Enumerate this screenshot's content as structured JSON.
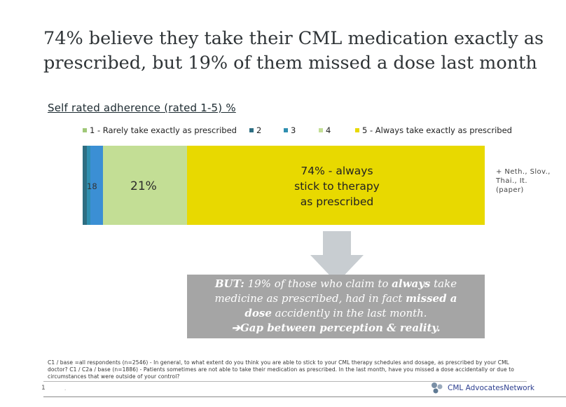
{
  "title": "74% believe they take their CML medication exactly as prescribed, but 19% of them missed a dose last month",
  "chart_data": {
    "type": "bar",
    "orientation": "horizontal-stacked-100",
    "title": "Self rated adherence (rated 1-5) %",
    "series": [
      {
        "name": "1 - Rarely take exactly as prescribed",
        "value": 1,
        "color": "#2e6e82"
      },
      {
        "name": "2",
        "value": 1,
        "color": "#2f8fb0"
      },
      {
        "name": "3",
        "value": 3,
        "color": "#3b8fd4"
      },
      {
        "name": "4",
        "value": 21,
        "color": "#c3de95"
      },
      {
        "name": "5 - Always take  exactly as prescribed",
        "value": 74,
        "color": "#e8d900"
      }
    ],
    "data_labels": {
      "left_stub": "18",
      "four": "21%"
    },
    "big_label_lines": [
      "74% - always",
      "stick to therapy",
      "as prescribed"
    ]
  },
  "side_note_lines": [
    "+ Neth., Slov.,",
    "Thai., It.",
    "(paper)"
  ],
  "callout": {
    "line1_bold": "BUT:",
    "line1_rest": " 19% of those who claim to ",
    "line1_bold2": "always",
    "line1_end": " take",
    "line2_a": "medicine as prescribed, had in fact ",
    "line2_bold": "missed a",
    "line3_bold": "dose",
    "line3_rest": " accidently in the last month.",
    "line4_arrow": "➔",
    "line4_bold": "Gap between perception & reality."
  },
  "footnote": "C1 / base =all respondents (n=2546) - In general, to what extent do you think you are able to stick to your CML therapy schedules and dosage, as prescribed by your CML doctor? C1 / C2a / base (n=1886) - Patients sometimes are not able to take their medication as prescribed. In the last month, have you missed a dose accidentally or due to circumstances that were outside of your control?",
  "footer": {
    "page": "1",
    "dot": ".",
    "logo_text": "CML AdvocatesNetwork"
  },
  "colors": {
    "arrow": "#c8cdd1",
    "callout_bg": "#a5a5a5"
  }
}
